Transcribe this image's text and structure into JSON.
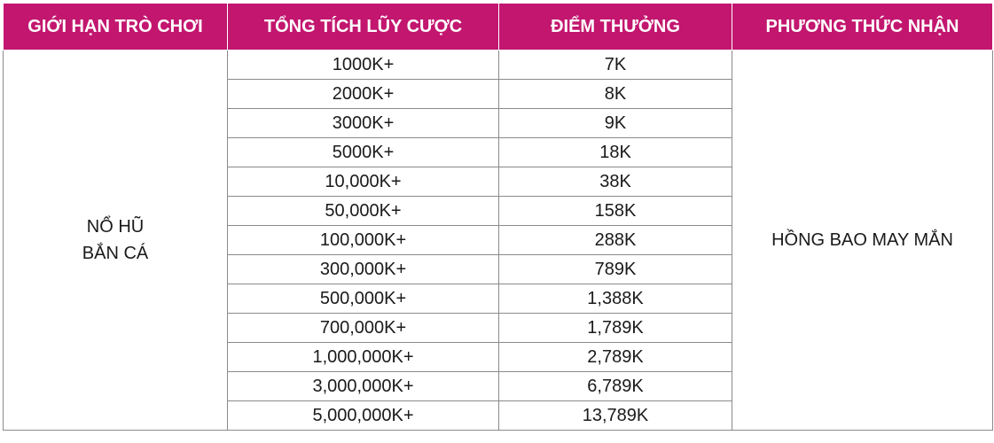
{
  "headers": [
    "GIỚI HẠN TRÒ CHƠI",
    "TỔNG TÍCH LŨY CƯỢC",
    "ĐIỂM THƯỞNG",
    "PHƯƠNG THỨC NHẬN"
  ],
  "game_limit": [
    "NỔ HŨ",
    "BẮN CÁ"
  ],
  "receive_method": "HỒNG BAO MAY MẮN",
  "rows": [
    {
      "bet": "1000K+",
      "reward": "7K"
    },
    {
      "bet": "2000K+",
      "reward": "8K"
    },
    {
      "bet": "3000K+",
      "reward": "9K"
    },
    {
      "bet": "5000K+",
      "reward": "18K"
    },
    {
      "bet": "10,000K+",
      "reward": "38K"
    },
    {
      "bet": "50,000K+",
      "reward": "158K"
    },
    {
      "bet": "100,000K+",
      "reward": "288K"
    },
    {
      "bet": "300,000K+",
      "reward": "789K"
    },
    {
      "bet": "500,000K+",
      "reward": "1,388K"
    },
    {
      "bet": "700,000K+",
      "reward": "1,789K"
    },
    {
      "bet": "1,000,000K+",
      "reward": "2,789K"
    },
    {
      "bet": "3,000,000K+",
      "reward": "6,789K"
    },
    {
      "bet": "5,000,000K+",
      "reward": "13,789K"
    }
  ],
  "colors": {
    "header_bg": "#c2166f",
    "header_text": "#ffffff",
    "border": "#8a8a8a"
  }
}
